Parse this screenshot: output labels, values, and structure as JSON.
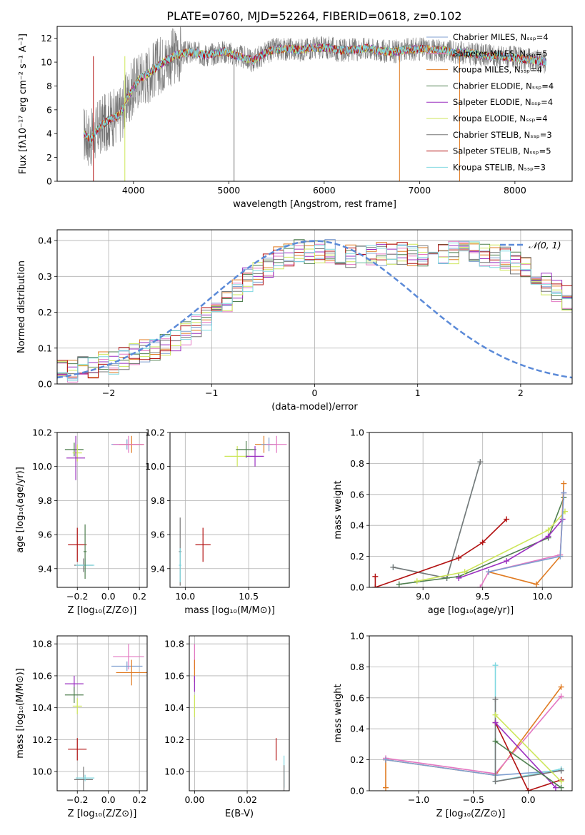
{
  "title": "PLATE=0760, MJD=52264, FIBERID=0618, z=0.102",
  "colors": {
    "Chabrier MILES": "#7f9fd0",
    "Salpeter MILES": "#e377c2",
    "Kroupa MILES": "#e07b22",
    "Chabrier ELODIE": "#4f7f4f",
    "Salpeter ELODIE": "#9b30c0",
    "Kroupa ELODIE": "#cde65a",
    "Chabrier STELIB": "#777777",
    "Salpeter STELIB": "#b21212",
    "Kroupa STELIB": "#7fd8e0",
    "normal": "#5b8ad8"
  },
  "chart_data": [
    {
      "type": "line",
      "id": "spectrum",
      "xlabel": "wavelength [Angstrom, rest frame]",
      "ylabel": "Flux [fλ10⁻¹⁷ erg cm⁻² s⁻¹ A⁻¹]",
      "xlim": [
        3200,
        8600
      ],
      "ylim": [
        0,
        13
      ],
      "xticks": [
        4000,
        5000,
        6000,
        7000,
        8000
      ],
      "yticks": [
        0,
        2,
        4,
        6,
        8,
        10,
        12
      ],
      "grid": false,
      "legend_position": "right",
      "data_x": [
        3480,
        3550,
        3650,
        3750,
        3850,
        3950,
        4050,
        4150,
        4250,
        4350,
        4450,
        4550,
        4650,
        4750,
        4850,
        4950,
        5050,
        5150,
        5250,
        5350,
        5450,
        5550,
        5650,
        5750,
        5850,
        5950,
        6050,
        6150,
        6250,
        6350,
        6450,
        6550,
        6650,
        6750,
        6850,
        6950,
        7050,
        7150,
        7250,
        7350,
        7450,
        7550,
        7650,
        7750,
        7850,
        7950,
        8050,
        8150,
        8250,
        8330
      ],
      "data_y": [
        4.0,
        3.5,
        4.6,
        5.2,
        5.5,
        7.2,
        8.5,
        9.0,
        9.6,
        10.2,
        10.6,
        10.8,
        10.8,
        10.6,
        10.7,
        10.9,
        10.6,
        10.4,
        10.1,
        10.6,
        11.0,
        11.1,
        11.1,
        11.0,
        11.2,
        11.2,
        11.2,
        11.0,
        11.0,
        11.1,
        11.2,
        11.0,
        10.9,
        10.9,
        11.0,
        11.1,
        11.1,
        11.0,
        11.0,
        10.8,
        10.8,
        10.7,
        10.6,
        10.5,
        10.5,
        10.4,
        10.3,
        10.2,
        10.1,
        10.0
      ],
      "legend": [
        "Chabrier MILES, Nₛₛₚ=4",
        "Salpeter MILES, Nₛₛₚ=5",
        "Kroupa MILES, Nₛₛₚ=4",
        "Chabrier ELODIE, Nₛₛₚ=4",
        "Salpeter ELODIE, Nₛₛₚ=4",
        "Kroupa ELODIE, Nₛₛₚ=4",
        "Chabrier STELIB, Nₛₛₚ=3",
        "Salpeter STELIB, Nₛₛₚ=5",
        "Kroupa STELIB, Nₛₛₚ=3"
      ],
      "legend_keys": [
        "Chabrier MILES",
        "Salpeter MILES",
        "Kroupa MILES",
        "Chabrier ELODIE",
        "Salpeter ELODIE",
        "Kroupa ELODIE",
        "Chabrier STELIB",
        "Salpeter STELIB",
        "Kroupa STELIB"
      ]
    },
    {
      "type": "line",
      "id": "residuals",
      "xlabel": "(data-model)/error",
      "ylabel": "Normed distribution",
      "xlim": [
        -2.5,
        2.5
      ],
      "ylim": [
        0,
        0.43
      ],
      "xticks": [
        -2,
        -1,
        0,
        1,
        2
      ],
      "yticks": [
        0.0,
        0.1,
        0.2,
        0.3,
        0.4
      ],
      "grid": true,
      "legend": [
        "𝒩(0, 1)"
      ],
      "legend_position": "top-right",
      "bin_width": 0.1,
      "envelope": [
        0.04,
        0.04,
        0.045,
        0.05,
        0.055,
        0.06,
        0.07,
        0.08,
        0.09,
        0.1,
        0.11,
        0.125,
        0.14,
        0.16,
        0.18,
        0.2,
        0.23,
        0.26,
        0.29,
        0.31,
        0.33,
        0.35,
        0.36,
        0.37,
        0.37,
        0.37,
        0.37,
        0.36,
        0.36,
        0.36,
        0.36,
        0.36,
        0.36,
        0.36,
        0.36,
        0.36,
        0.36,
        0.37,
        0.37,
        0.37,
        0.37,
        0.36,
        0.36,
        0.35,
        0.34,
        0.32,
        0.3,
        0.28,
        0.26,
        0.24,
        0.22,
        0.2,
        0.18,
        0.16,
        0.15,
        0.14,
        0.12,
        0.11,
        0.1,
        0.09,
        0.08,
        0.07,
        0.065,
        0.06,
        0.055,
        0.05,
        0.045,
        0.04,
        0.04,
        0.035,
        0.035,
        0.03,
        0.03,
        0.03,
        0.03,
        0.03,
        0.03,
        0.03,
        0.03,
        0.03,
        0.03,
        0.03,
        0.03,
        0.03,
        0.03,
        0.03,
        0.03,
        0.03,
        0.03,
        0.03,
        0.03,
        0.03,
        0.03,
        0.03,
        0.03,
        0.03,
        0.03,
        0.03,
        0.03,
        0.03
      ]
    },
    {
      "type": "scatter",
      "id": "age_vs_Z",
      "xlabel": "Z [log₁₀(Z/Z⊙)]",
      "ylabel": "age  [log₁₀(age/yr)]",
      "xlim": [
        -0.33,
        0.25
      ],
      "ylim": [
        9.29,
        10.2
      ],
      "xticks": [
        -0.2,
        0.0,
        0.2
      ],
      "yticks": [
        9.4,
        9.6,
        9.8,
        10.0,
        10.2
      ],
      "grid": true,
      "points": [
        {
          "key": "Chabrier ELODIE",
          "x": -0.22,
          "y": 10.1,
          "xerr": 0.06,
          "yerr": 0.04
        },
        {
          "key": "Kroupa ELODIE",
          "x": -0.2,
          "y": 10.08,
          "xerr": 0.03,
          "yerr": 0.05
        },
        {
          "key": "Salpeter ELODIE",
          "x": -0.21,
          "y": 10.05,
          "xerr": 0.06,
          "yerr": 0.13
        },
        {
          "key": "Chabrier MILES",
          "x": 0.12,
          "y": 10.13,
          "xerr": 0.1,
          "yerr": 0.03
        },
        {
          "key": "Kroupa MILES",
          "x": 0.15,
          "y": 10.13,
          "xerr": 0.08,
          "yerr": 0.05
        },
        {
          "key": "Salpeter MILES",
          "x": 0.13,
          "y": 10.13,
          "xerr": 0.1,
          "yerr": 0.05
        },
        {
          "key": "Salpeter STELIB",
          "x": -0.2,
          "y": 9.54,
          "xerr": 0.06,
          "yerr": 0.1
        },
        {
          "key": "Chabrier STELIB",
          "x": -0.16,
          "y": 9.42,
          "xerr": 0.06,
          "yerr": 0.04
        },
        {
          "key": "Kroupa STELIB",
          "x": -0.15,
          "y": 9.42,
          "xerr": 0.06,
          "yerr": 0.04
        },
        {
          "key": "Chabrier ELODIE",
          "x": -0.15,
          "y": 9.5,
          "xerr": 0.01,
          "yerr": 0.16
        }
      ]
    },
    {
      "type": "scatter",
      "id": "age_vs_mass",
      "xlabel": "mass [log₁₀(M/M⊙)]",
      "ylabel": "",
      "xlim": [
        9.88,
        10.82
      ],
      "ylim": [
        9.29,
        10.2
      ],
      "xticks": [
        10.0,
        10.5
      ],
      "yticks": [
        9.4,
        9.6,
        9.8,
        10.0,
        10.2
      ],
      "grid": true,
      "points": [
        {
          "key": "Kroupa ELODIE",
          "x": 10.41,
          "y": 10.06,
          "xerr": 0.1,
          "yerr": 0.06
        },
        {
          "key": "Chabrier ELODIE",
          "x": 10.48,
          "y": 10.1,
          "xerr": 0.08,
          "yerr": 0.05
        },
        {
          "key": "Salpeter ELODIE",
          "x": 10.55,
          "y": 10.06,
          "xerr": 0.07,
          "yerr": 0.06
        },
        {
          "key": "Kroupa MILES",
          "x": 10.62,
          "y": 10.13,
          "xerr": 0.07,
          "yerr": 0.05
        },
        {
          "key": "Chabrier MILES",
          "x": 10.66,
          "y": 10.13,
          "xerr": 0.06,
          "yerr": 0.04
        },
        {
          "key": "Salpeter MILES",
          "x": 10.72,
          "y": 10.13,
          "xerr": 0.08,
          "yerr": 0.05
        },
        {
          "key": "Salpeter STELIB",
          "x": 10.14,
          "y": 9.54,
          "xerr": 0.06,
          "yerr": 0.1
        },
        {
          "key": "Chabrier STELIB",
          "x": 9.96,
          "y": 9.5,
          "xerr": 0.01,
          "yerr": 0.2
        },
        {
          "key": "Kroupa STELIB",
          "x": 9.96,
          "y": 9.42,
          "xerr": 0.01,
          "yerr": 0.1
        }
      ]
    },
    {
      "type": "line",
      "id": "mass_weight_vs_age",
      "xlabel": "age  [log₁₀(age/yr)]",
      "ylabel": "mass weight",
      "xlim": [
        8.55,
        10.25
      ],
      "ylim": [
        0,
        1
      ],
      "xticks": [
        9.0,
        9.5,
        10.0
      ],
      "yticks": [
        0.0,
        0.2,
        0.4,
        0.6,
        0.8,
        1.0
      ],
      "grid": true,
      "series": [
        {
          "key": "Kroupa STELIB",
          "x": [
            8.75,
            9.2,
            9.48
          ],
          "y": [
            0.13,
            0.06,
            0.81
          ]
        },
        {
          "key": "Chabrier STELIB",
          "x": [
            8.75,
            9.2,
            9.48
          ],
          "y": [
            0.13,
            0.06,
            0.81
          ]
        },
        {
          "key": "Salpeter STELIB",
          "x": [
            8.6,
            8.6,
            9.3,
            9.5,
            9.7
          ],
          "y": [
            0.07,
            0.0,
            0.19,
            0.29,
            0.44
          ]
        },
        {
          "key": "Chabrier ELODIE",
          "x": [
            8.8,
            9.3,
            10.05,
            10.18
          ],
          "y": [
            0.02,
            0.07,
            0.32,
            0.58
          ]
        },
        {
          "key": "Kroupa ELODIE",
          "x": [
            8.95,
            9.35,
            10.05,
            10.19
          ],
          "y": [
            0.04,
            0.1,
            0.37,
            0.49
          ]
        },
        {
          "key": "Salpeter ELODIE",
          "x": [
            9.3,
            9.7,
            10.05,
            10.17
          ],
          "y": [
            0.06,
            0.17,
            0.33,
            0.44
          ]
        },
        {
          "key": "Kroupa MILES",
          "x": [
            9.55,
            9.95,
            10.15,
            10.18
          ],
          "y": [
            0.1,
            0.02,
            0.2,
            0.67
          ]
        },
        {
          "key": "Salpeter MILES",
          "x": [
            9.48,
            9.55,
            10.15,
            10.18
          ],
          "y": [
            0.0,
            0.1,
            0.21,
            0.61
          ]
        },
        {
          "key": "Chabrier MILES",
          "x": [
            9.55,
            10.15,
            10.18
          ],
          "y": [
            0.1,
            0.2,
            0.61
          ]
        }
      ]
    },
    {
      "type": "scatter",
      "id": "mass_vs_Z",
      "xlabel": "Z [log₁₀(Z/Z⊙)]",
      "ylabel": "mass [log₁₀(M/M⊙)]",
      "xlim": [
        -0.33,
        0.25
      ],
      "ylim": [
        9.88,
        10.85
      ],
      "xticks": [
        -0.2,
        0.0,
        0.2
      ],
      "yticks": [
        10.0,
        10.2,
        10.4,
        10.6,
        10.8
      ],
      "grid": true,
      "points": [
        {
          "key": "Salpeter ELODIE",
          "x": -0.22,
          "y": 10.55,
          "xerr": 0.06,
          "yerr": 0.05
        },
        {
          "key": "Chabrier ELODIE",
          "x": -0.22,
          "y": 10.48,
          "xerr": 0.06,
          "yerr": 0.05
        },
        {
          "key": "Kroupa ELODIE",
          "x": -0.2,
          "y": 10.41,
          "xerr": 0.03,
          "yerr": 0.05
        },
        {
          "key": "Salpeter MILES",
          "x": 0.13,
          "y": 10.72,
          "xerr": 0.1,
          "yerr": 0.08
        },
        {
          "key": "Chabrier MILES",
          "x": 0.12,
          "y": 10.66,
          "xerr": 0.1,
          "yerr": 0.03
        },
        {
          "key": "Kroupa MILES",
          "x": 0.15,
          "y": 10.62,
          "xerr": 0.1,
          "yerr": 0.08
        },
        {
          "key": "Salpeter STELIB",
          "x": -0.2,
          "y": 10.14,
          "xerr": 0.06,
          "yerr": 0.07
        },
        {
          "key": "Chabrier STELIB",
          "x": -0.16,
          "y": 9.95,
          "xerr": 0.06,
          "yerr": 0.08
        },
        {
          "key": "Kroupa STELIB",
          "x": -0.15,
          "y": 9.96,
          "xerr": 0.06,
          "yerr": 0.02
        }
      ]
    },
    {
      "type": "scatter",
      "id": "mass_vs_EBV",
      "xlabel": "E(B-V)",
      "ylabel": "",
      "xlim": [
        -0.002,
        0.036
      ],
      "ylim": [
        9.88,
        10.85
      ],
      "xticks": [
        0.0,
        0.02
      ],
      "yticks": [
        10.0,
        10.2,
        10.4,
        10.6,
        10.8
      ],
      "grid": true,
      "points": [
        {
          "key": "Salpeter MILES",
          "x": 0.0,
          "y": 10.72,
          "xerr": 0.0,
          "yerr": 0.08
        },
        {
          "key": "Kroupa MILES",
          "x": 0.0,
          "y": 10.63,
          "xerr": 0.0,
          "yerr": 0.07
        },
        {
          "key": "Salpeter ELODIE",
          "x": 0.0,
          "y": 10.55,
          "xerr": 0.0,
          "yerr": 0.05
        },
        {
          "key": "Kroupa ELODIE",
          "x": 0.0,
          "y": 10.41,
          "xerr": 0.0,
          "yerr": 0.07
        },
        {
          "key": "Salpeter STELIB",
          "x": 0.031,
          "y": 10.14,
          "xerr": 0.0,
          "yerr": 0.07
        },
        {
          "key": "Kroupa STELIB",
          "x": 0.034,
          "y": 10.0,
          "xerr": 0.0,
          "yerr": 0.1
        },
        {
          "key": "Chabrier STELIB",
          "x": 0.034,
          "y": 9.96,
          "xerr": 0.0,
          "yerr": 0.08
        }
      ]
    },
    {
      "type": "line",
      "id": "mass_weight_vs_Z",
      "xlabel": "Z [log₁₀(Z/Z⊙)]",
      "ylabel": "mass weight",
      "xlim": [
        -1.45,
        0.4
      ],
      "ylim": [
        0,
        1
      ],
      "xticks": [
        -1.0,
        -0.5,
        0.0
      ],
      "yticks": [
        0.0,
        0.2,
        0.4,
        0.6,
        0.8,
        1.0
      ],
      "grid": true,
      "series": [
        {
          "key": "Kroupa MILES",
          "x": [
            -1.3,
            -1.3,
            -0.3,
            0.3
          ],
          "y": [
            0.02,
            0.2,
            0.1,
            0.67
          ]
        },
        {
          "key": "Salpeter MILES",
          "x": [
            -1.3,
            -0.3,
            0.3
          ],
          "y": [
            0.21,
            0.11,
            0.61
          ]
        },
        {
          "key": "Chabrier MILES",
          "x": [
            -1.3,
            -0.3,
            0.3
          ],
          "y": [
            0.2,
            0.1,
            0.13
          ]
        },
        {
          "key": "Kroupa STELIB",
          "x": [
            -0.3,
            -0.3,
            0.3
          ],
          "y": [
            0.81,
            0.06,
            0.14
          ]
        },
        {
          "key": "Chabrier STELIB",
          "x": [
            -0.3,
            -0.3,
            0.3
          ],
          "y": [
            0.59,
            0.06,
            0.13
          ]
        },
        {
          "key": "Salpeter STELIB",
          "x": [
            -0.3,
            0.0,
            0.3
          ],
          "y": [
            0.44,
            0.0,
            0.07
          ]
        },
        {
          "key": "Salpeter ELODIE",
          "x": [
            -0.3,
            0.25
          ],
          "y": [
            0.44,
            0.02
          ]
        },
        {
          "key": "Kroupa ELODIE",
          "x": [
            -0.3,
            0.3
          ],
          "y": [
            0.49,
            0.06
          ]
        },
        {
          "key": "Chabrier ELODIE",
          "x": [
            -0.3,
            0.3
          ],
          "y": [
            0.32,
            0.02
          ]
        }
      ]
    }
  ]
}
